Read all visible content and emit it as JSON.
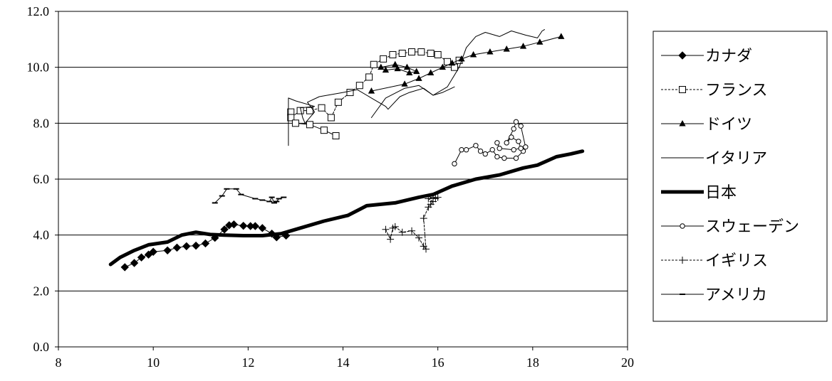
{
  "chart_data": {
    "type": "line",
    "title": "",
    "xlabel": "",
    "ylabel": "",
    "xlim": [
      8,
      20
    ],
    "ylim": [
      0,
      12
    ],
    "x_ticks": [
      "8",
      "10",
      "12",
      "14",
      "16",
      "18",
      "20"
    ],
    "y_ticks": [
      "0.0",
      "2.0",
      "4.0",
      "6.0",
      "8.0",
      "10.0",
      "12.0"
    ],
    "grid": "horizontal",
    "legend_position": "right",
    "series": [
      {
        "name": "カナダ",
        "marker": "diamond",
        "dash": "solid",
        "width": 1,
        "points": [
          [
            9.4,
            2.85
          ],
          [
            9.6,
            3.0
          ],
          [
            9.75,
            3.2
          ],
          [
            9.9,
            3.3
          ],
          [
            10.0,
            3.4
          ],
          [
            10.3,
            3.45
          ],
          [
            10.5,
            3.55
          ],
          [
            10.7,
            3.6
          ],
          [
            10.9,
            3.62
          ],
          [
            11.1,
            3.7
          ],
          [
            11.3,
            3.9
          ],
          [
            11.5,
            4.2
          ],
          [
            11.6,
            4.35
          ],
          [
            11.7,
            4.38
          ],
          [
            11.9,
            4.33
          ],
          [
            12.05,
            4.32
          ],
          [
            12.15,
            4.32
          ],
          [
            12.3,
            4.25
          ],
          [
            12.5,
            4.05
          ],
          [
            12.6,
            3.92
          ],
          [
            12.8,
            3.98
          ]
        ]
      },
      {
        "name": "フランス",
        "marker": "square",
        "dash": "dashed",
        "width": 1,
        "points": [
          [
            12.9,
            8.4
          ],
          [
            12.9,
            8.2
          ],
          [
            13.1,
            8.45
          ],
          [
            13.3,
            8.45
          ],
          [
            13.55,
            8.55
          ],
          [
            13.75,
            8.2
          ],
          [
            13.9,
            8.75
          ],
          [
            14.15,
            9.1
          ],
          [
            14.35,
            9.35
          ],
          [
            14.55,
            9.65
          ],
          [
            14.65,
            10.1
          ],
          [
            14.85,
            10.3
          ],
          [
            15.05,
            10.45
          ],
          [
            15.25,
            10.5
          ],
          [
            15.45,
            10.55
          ],
          [
            15.65,
            10.55
          ],
          [
            15.85,
            10.5
          ],
          [
            16.0,
            10.45
          ],
          [
            16.2,
            10.2
          ],
          [
            16.35,
            10.0
          ],
          [
            16.45,
            10.25
          ]
        ]
      },
      {
        "name": "フランス-2",
        "marker": "square",
        "dash": "solid",
        "width": 1,
        "points": [
          [
            13.0,
            8.0
          ],
          [
            13.3,
            7.95
          ],
          [
            13.6,
            7.75
          ],
          [
            13.85,
            7.55
          ]
        ]
      },
      {
        "name": "ドイツ",
        "marker": "triangle",
        "dash": "solid",
        "width": 1,
        "points": [
          [
            14.6,
            9.15
          ],
          [
            15.3,
            9.4
          ],
          [
            15.6,
            9.6
          ],
          [
            15.85,
            9.8
          ],
          [
            16.1,
            10.0
          ],
          [
            16.3,
            10.15
          ],
          [
            16.5,
            10.3
          ],
          [
            16.75,
            10.45
          ],
          [
            17.1,
            10.55
          ],
          [
            17.45,
            10.65
          ],
          [
            17.8,
            10.75
          ],
          [
            18.15,
            10.9
          ],
          [
            18.6,
            11.1
          ]
        ]
      },
      {
        "name": "ドイツ-2",
        "marker": "triangle",
        "dash": "solid",
        "width": 1,
        "points": [
          [
            14.8,
            10.0
          ],
          [
            15.1,
            10.1
          ],
          [
            15.35,
            10.0
          ],
          [
            15.55,
            9.85
          ],
          [
            15.4,
            9.8
          ],
          [
            15.15,
            9.95
          ],
          [
            14.9,
            9.9
          ]
        ]
      },
      {
        "name": "イタリア",
        "marker": "none",
        "dash": "solid",
        "width": 1,
        "points": [
          [
            12.85,
            7.2
          ],
          [
            12.85,
            8.9
          ],
          [
            13.0,
            8.8
          ],
          [
            13.4,
            8.6
          ],
          [
            13.1,
            8.55
          ],
          [
            13.15,
            8.2
          ],
          [
            13.2,
            8.0
          ],
          [
            13.4,
            8.4
          ],
          [
            13.25,
            8.75
          ],
          [
            13.5,
            8.95
          ],
          [
            14.0,
            9.1
          ],
          [
            14.3,
            9.2
          ],
          [
            14.65,
            8.85
          ],
          [
            14.9,
            8.6
          ],
          [
            14.95,
            8.5
          ],
          [
            15.2,
            8.95
          ],
          [
            15.4,
            9.1
          ],
          [
            15.7,
            9.25
          ],
          [
            15.9,
            9.0
          ],
          [
            16.2,
            9.3
          ],
          [
            16.45,
            10.0
          ],
          [
            16.6,
            10.7
          ],
          [
            16.8,
            11.1
          ],
          [
            17.0,
            11.25
          ],
          [
            17.3,
            11.1
          ],
          [
            17.55,
            11.3
          ],
          [
            17.85,
            11.15
          ],
          [
            18.1,
            11.05
          ],
          [
            18.2,
            11.3
          ],
          [
            18.25,
            11.35
          ]
        ]
      },
      {
        "name": "イタリア-2",
        "marker": "none",
        "dash": "solid",
        "width": 1,
        "points": [
          [
            14.6,
            8.2
          ],
          [
            14.9,
            8.9
          ],
          [
            15.3,
            9.25
          ],
          [
            15.6,
            9.35
          ],
          [
            15.9,
            9.0
          ],
          [
            16.1,
            9.1
          ],
          [
            16.35,
            9.3
          ]
        ]
      },
      {
        "name": "日本",
        "marker": "none",
        "dash": "solid",
        "width": 5,
        "points": [
          [
            9.1,
            2.95
          ],
          [
            9.3,
            3.2
          ],
          [
            9.6,
            3.45
          ],
          [
            9.9,
            3.65
          ],
          [
            10.3,
            3.75
          ],
          [
            10.6,
            4.0
          ],
          [
            10.9,
            4.1
          ],
          [
            11.2,
            4.02
          ],
          [
            11.5,
            4.0
          ],
          [
            11.9,
            3.98
          ],
          [
            12.3,
            3.98
          ],
          [
            12.7,
            4.05
          ],
          [
            13.1,
            4.25
          ],
          [
            13.6,
            4.5
          ],
          [
            14.1,
            4.7
          ],
          [
            14.5,
            5.05
          ],
          [
            15.1,
            5.15
          ],
          [
            15.6,
            5.35
          ],
          [
            15.9,
            5.45
          ],
          [
            16.3,
            5.75
          ],
          [
            16.8,
            6.0
          ],
          [
            17.3,
            6.15
          ],
          [
            17.8,
            6.4
          ],
          [
            18.1,
            6.5
          ],
          [
            18.5,
            6.8
          ],
          [
            18.8,
            6.9
          ],
          [
            19.05,
            7.0
          ]
        ]
      },
      {
        "name": "スウェーデン",
        "marker": "circle",
        "dash": "solid",
        "width": 1,
        "points": [
          [
            16.35,
            6.55
          ],
          [
            16.5,
            7.05
          ],
          [
            16.6,
            7.05
          ],
          [
            16.8,
            7.2
          ],
          [
            16.9,
            7.0
          ],
          [
            17.0,
            6.9
          ],
          [
            17.15,
            7.05
          ],
          [
            17.25,
            6.8
          ],
          [
            17.4,
            6.75
          ],
          [
            17.65,
            6.75
          ],
          [
            17.8,
            7.0
          ],
          [
            17.75,
            7.1
          ],
          [
            17.7,
            7.35
          ],
          [
            17.55,
            7.5
          ],
          [
            17.45,
            7.3
          ],
          [
            17.6,
            7.8
          ],
          [
            17.65,
            8.05
          ],
          [
            17.75,
            7.9
          ],
          [
            17.85,
            7.15
          ],
          [
            17.6,
            7.05
          ],
          [
            17.3,
            7.1
          ],
          [
            17.25,
            7.3
          ]
        ]
      },
      {
        "name": "イギリス",
        "marker": "plus",
        "dash": "dashed",
        "width": 1,
        "points": [
          [
            14.9,
            4.2
          ],
          [
            15.0,
            3.85
          ],
          [
            15.05,
            4.25
          ],
          [
            15.1,
            4.3
          ],
          [
            15.25,
            4.1
          ],
          [
            15.45,
            4.15
          ],
          [
            15.6,
            3.9
          ],
          [
            15.7,
            3.6
          ],
          [
            15.75,
            3.5
          ],
          [
            15.7,
            4.6
          ],
          [
            15.8,
            5.0
          ],
          [
            15.85,
            5.1
          ],
          [
            15.9,
            5.2
          ],
          [
            15.8,
            5.3
          ],
          [
            15.9,
            5.35
          ],
          [
            15.95,
            5.3
          ],
          [
            16.0,
            5.35
          ]
        ]
      },
      {
        "name": "アメリカ",
        "marker": "dash",
        "dash": "solid",
        "width": 1,
        "points": [
          [
            11.3,
            5.15
          ],
          [
            11.45,
            5.4
          ],
          [
            11.55,
            5.65
          ],
          [
            11.75,
            5.65
          ],
          [
            11.85,
            5.45
          ],
          [
            12.15,
            5.3
          ],
          [
            12.3,
            5.25
          ],
          [
            12.45,
            5.2
          ],
          [
            12.5,
            5.35
          ],
          [
            12.55,
            5.15
          ],
          [
            12.6,
            5.2
          ],
          [
            12.65,
            5.3
          ],
          [
            12.75,
            5.35
          ]
        ]
      }
    ],
    "legend": [
      {
        "label": "カナダ",
        "marker": "diamond",
        "dash": "solid",
        "width": 1
      },
      {
        "label": "フランス",
        "marker": "square",
        "dash": "dashed",
        "width": 1
      },
      {
        "label": "ドイツ",
        "marker": "triangle",
        "dash": "solid",
        "width": 1
      },
      {
        "label": "イタリア",
        "marker": "none",
        "dash": "solid",
        "width": 1
      },
      {
        "label": "日本",
        "marker": "none",
        "dash": "solid",
        "width": 5
      },
      {
        "label": "スウェーデン",
        "marker": "circle",
        "dash": "solid",
        "width": 1
      },
      {
        "label": "イギリス",
        "marker": "plus",
        "dash": "dashed",
        "width": 1
      },
      {
        "label": "アメリカ",
        "marker": "dash",
        "dash": "solid",
        "width": 1
      }
    ]
  }
}
